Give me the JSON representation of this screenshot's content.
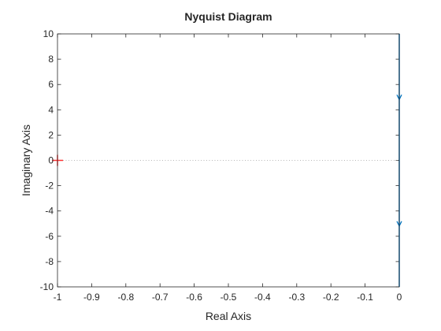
{
  "chart_data": {
    "type": "line",
    "title": "Nyquist Diagram",
    "xlabel": "Real Axis",
    "ylabel": "Imaginary Axis",
    "xlim": [
      -1,
      0
    ],
    "ylim": [
      -10,
      10
    ],
    "xticks": [
      -1,
      -0.9,
      -0.8,
      -0.7,
      -0.6,
      -0.5,
      -0.4,
      -0.3,
      -0.2,
      -0.1,
      0
    ],
    "xtick_labels": [
      "-1",
      "-0.9",
      "-0.8",
      "-0.7",
      "-0.6",
      "-0.5",
      "-0.4",
      "-0.3",
      "-0.2",
      "-0.1",
      "0"
    ],
    "yticks": [
      -10,
      -8,
      -6,
      -4,
      -2,
      0,
      2,
      4,
      6,
      8,
      10
    ],
    "ytick_labels": [
      "-10",
      "-8",
      "-6",
      "-4",
      "-2",
      "0",
      "2",
      "4",
      "6",
      "8",
      "10"
    ],
    "grid": false,
    "series": [
      {
        "color": "#0072BD",
        "x": [
          0,
          0
        ],
        "y": [
          -10,
          10
        ],
        "arrows": [
          {
            "x": 0,
            "y": 5,
            "direction": "down"
          },
          {
            "x": 0,
            "y": -5,
            "direction": "down"
          }
        ]
      }
    ],
    "reference_line": {
      "y": 0,
      "style": "dotted",
      "color": "#a0a0a0"
    },
    "critical_point": {
      "x": -1,
      "y": 0,
      "marker": "+",
      "color": "#ff3030"
    }
  }
}
